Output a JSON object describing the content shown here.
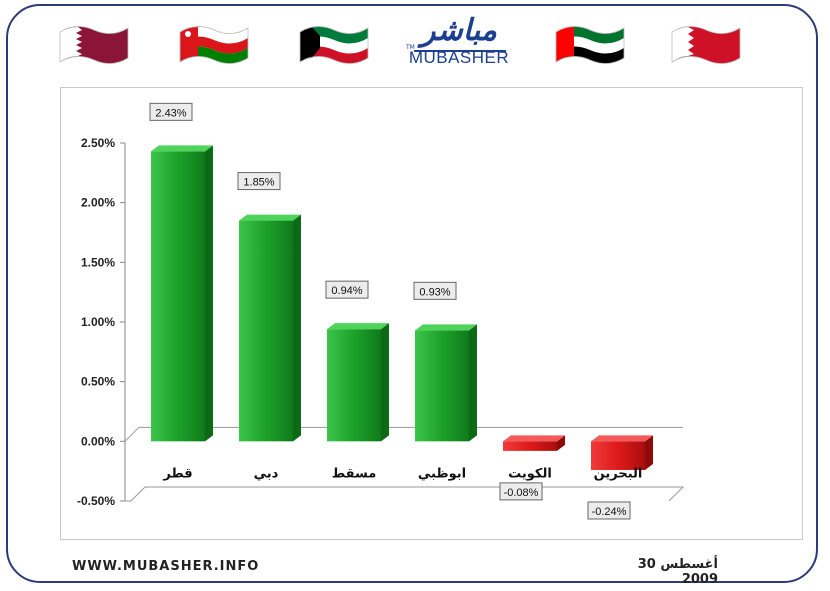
{
  "header": {
    "logo_arabic": "مباشر",
    "logo_english": "MUBASHER",
    "logo_tm": "TM",
    "flags": [
      {
        "name": "qatar-flag",
        "colors": [
          "#8a1538",
          "#ffffff"
        ]
      },
      {
        "name": "oman-flag",
        "colors": [
          "#db161b",
          "#ffffff",
          "#008000"
        ]
      },
      {
        "name": "kuwait-flag",
        "colors": [
          "#007a3d",
          "#ffffff",
          "#ce1126",
          "#000000"
        ]
      },
      {
        "name": "uae-flag",
        "colors": [
          "#00732f",
          "#ffffff",
          "#000000",
          "#ff0000"
        ]
      },
      {
        "name": "bahrain-flag",
        "colors": [
          "#ce1126",
          "#ffffff"
        ]
      }
    ]
  },
  "footer": {
    "website": "WWW.MUBASHER.INFO",
    "date": "30 أغسطس 2009"
  },
  "chart_data": {
    "type": "bar",
    "categories": [
      "قطر",
      "دبي",
      "مسقط",
      "ابوظبي",
      "الكويت",
      "البحرين"
    ],
    "values": [
      2.43,
      1.85,
      0.94,
      0.93,
      -0.08,
      -0.24
    ],
    "data_labels": [
      "2.43%",
      "1.85%",
      "0.94%",
      "0.93%",
      "-0.08%",
      "-0.24%"
    ],
    "y_ticks": [
      "2.50%",
      "2.00%",
      "1.50%",
      "1.00%",
      "0.50%",
      "0.00%",
      "-0.50%"
    ],
    "y_tick_values": [
      2.5,
      2.0,
      1.5,
      1.0,
      0.5,
      0.0,
      -0.5
    ],
    "ylim": [
      -0.5,
      2.5
    ],
    "positive_color": "#1e9e2a",
    "negative_color": "#e01b1b",
    "grid": false,
    "legend": "none"
  }
}
